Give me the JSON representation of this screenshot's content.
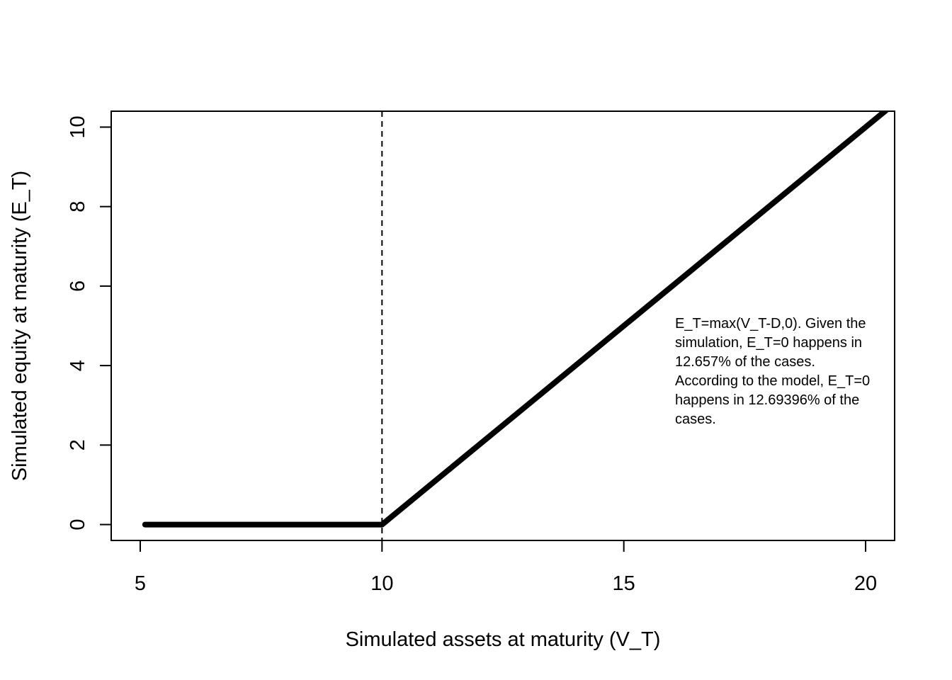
{
  "chart_data": {
    "type": "line",
    "title": "",
    "xlabel": "Simulated assets at maturity (V_T)",
    "ylabel": "Simulated equity at maturity (E_T)",
    "xlim": [
      4.4,
      20.6
    ],
    "ylim": [
      -0.4,
      10.4
    ],
    "x_ticks": [
      5,
      10,
      15,
      20
    ],
    "y_ticks": [
      0,
      2,
      4,
      6,
      8,
      10
    ],
    "grid": false,
    "series": [
      {
        "points": [
          [
            5.1,
            0
          ],
          [
            10,
            0
          ],
          [
            20.42,
            10.42
          ]
        ],
        "color": "#000000",
        "style": "solid"
      }
    ],
    "reference_lines": [
      {
        "axis": "x",
        "value": 10,
        "style": "dashed",
        "color": "#000000"
      }
    ],
    "annotation": "E_T=max(V_T-D,0). Given the\nsimulation, E_T=0 happens in\n12.657% of the cases.\nAccording to the model, E_T=0\nhappens in 12.69396% of the\ncases."
  }
}
